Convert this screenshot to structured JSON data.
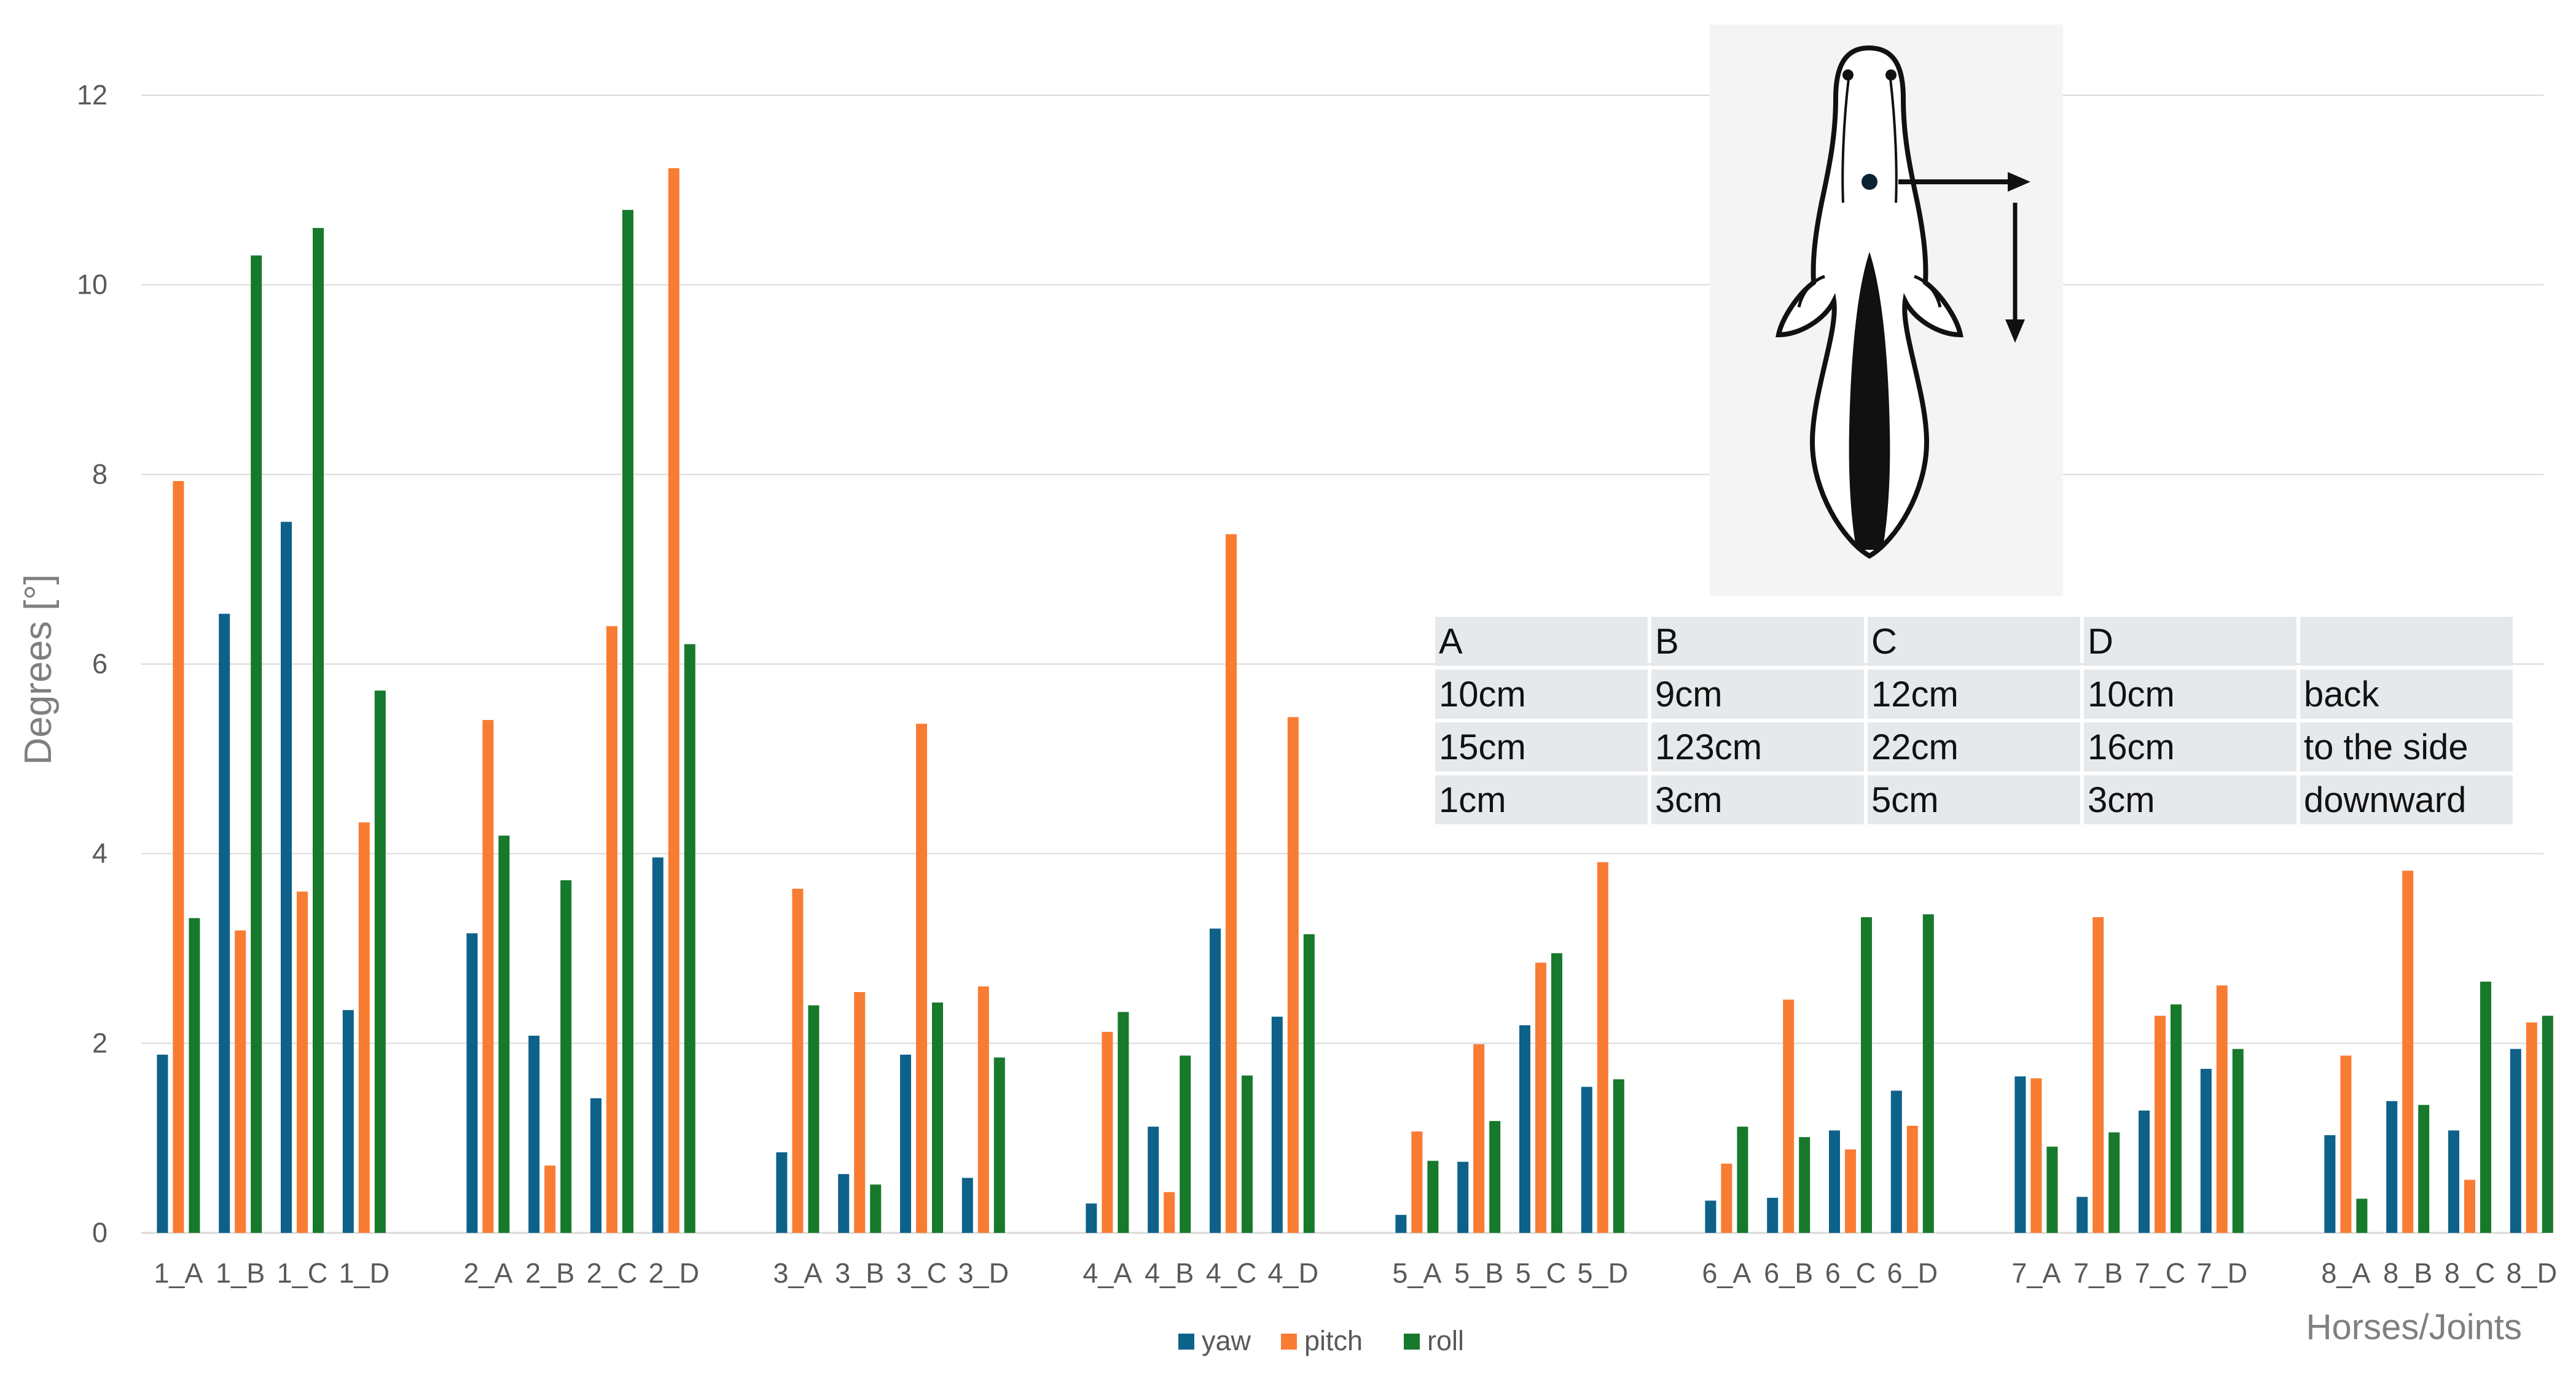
{
  "colors": {
    "yaw": "#0e6189",
    "pitch": "#f97c33",
    "roll": "#17792b",
    "grid": "#d9d9d9"
  },
  "chart_data": {
    "type": "bar",
    "title": "",
    "xlabel": "Horses/Joints",
    "ylabel": "Degrees [°]",
    "ylim": [
      0,
      12
    ],
    "yticks": [
      "0",
      "2",
      "4",
      "6",
      "8",
      "10",
      "12"
    ],
    "grid": true,
    "legend_position": "bottom",
    "groups": [
      [
        "1_A",
        "1_B",
        "1_C",
        "1_D"
      ],
      [
        "2_A",
        "2_B",
        "2_C",
        "2_D"
      ],
      [
        "3_A",
        "3_B",
        "3_C",
        "3_D"
      ],
      [
        "4_A",
        "4_B",
        "4_C",
        "4_D"
      ],
      [
        "5_A",
        "5_B",
        "5_C",
        "5_D"
      ],
      [
        "6_A",
        "6_B",
        "6_C",
        "6_D"
      ],
      [
        "7_A",
        "7_B",
        "7_C",
        "7_D"
      ],
      [
        "8_A",
        "8_B",
        "8_C",
        "8_D"
      ]
    ],
    "categories": [
      "1_A",
      "1_B",
      "1_C",
      "1_D",
      "2_A",
      "2_B",
      "2_C",
      "2_D",
      "3_A",
      "3_B",
      "3_C",
      "3_D",
      "4_A",
      "4_B",
      "4_C",
      "4_D",
      "5_A",
      "5_B",
      "5_C",
      "5_D",
      "6_A",
      "6_B",
      "6_C",
      "6_D",
      "7_A",
      "7_B",
      "7_C",
      "7_D",
      "8_A",
      "8_B",
      "8_C",
      "8_D"
    ],
    "series": [
      {
        "name": "yaw",
        "values": [
          1.88,
          6.53,
          7.5,
          2.35,
          3.16,
          2.08,
          1.42,
          3.96,
          0.85,
          0.62,
          1.88,
          0.58,
          0.31,
          1.12,
          3.21,
          2.28,
          0.19,
          0.75,
          2.19,
          1.54,
          0.34,
          0.37,
          1.08,
          1.5,
          1.65,
          0.38,
          1.29,
          1.73,
          1.03,
          1.39,
          1.08,
          1.94
        ]
      },
      {
        "name": "pitch",
        "values": [
          7.93,
          3.19,
          3.6,
          4.33,
          5.41,
          0.71,
          6.4,
          11.23,
          3.63,
          2.54,
          5.37,
          2.6,
          2.12,
          0.43,
          7.37,
          5.44,
          1.07,
          1.99,
          2.85,
          3.91,
          0.73,
          2.46,
          0.88,
          1.13,
          1.63,
          3.33,
          2.29,
          2.61,
          1.87,
          3.82,
          0.56,
          2.22
        ]
      },
      {
        "name": "roll",
        "values": [
          3.32,
          10.31,
          10.6,
          5.72,
          4.19,
          3.72,
          10.79,
          6.21,
          2.4,
          0.51,
          2.43,
          1.85,
          2.33,
          1.87,
          1.66,
          3.15,
          0.76,
          1.18,
          2.95,
          1.62,
          1.12,
          1.01,
          3.33,
          3.36,
          0.91,
          1.06,
          2.41,
          1.94,
          0.36,
          1.35,
          2.65,
          2.29
        ]
      }
    ]
  },
  "inset": {
    "table": {
      "rows": [
        [
          "A",
          "B",
          "C",
          "D",
          ""
        ],
        [
          "10cm",
          "9cm",
          "12cm",
          "10cm",
          "back"
        ],
        [
          "15cm",
          "123cm",
          "22cm",
          "16cm",
          "to the side"
        ],
        [
          "1cm",
          "3cm",
          "5cm",
          "3cm",
          "downward"
        ]
      ]
    }
  }
}
